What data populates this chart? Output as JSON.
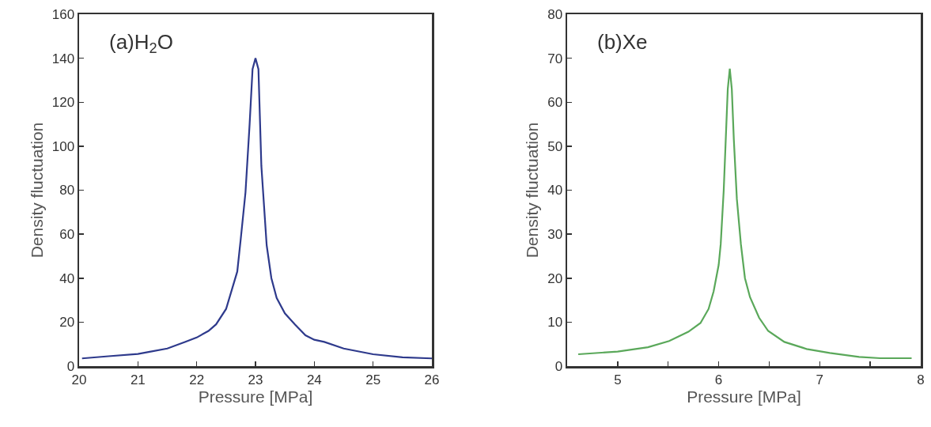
{
  "chart_data": [
    {
      "type": "line",
      "xlabel": "Pressure [MPa]",
      "ylabel": "Density fluctuation",
      "annotations": [
        "(a)H$_{2}$O"
      ],
      "xlim": [
        20,
        26
      ],
      "xticks": [
        20,
        21,
        22,
        23,
        24,
        25,
        26
      ],
      "ylim": [
        0,
        160
      ],
      "yticks": [
        0,
        20,
        40,
        60,
        80,
        100,
        120,
        140,
        160
      ],
      "grid": false,
      "marker": "none",
      "line_style": "solid",
      "series": [
        {
          "color": "#2e3a8c",
          "x": [
            20.05,
            20.5,
            21,
            21.2,
            21.5,
            21.8,
            22,
            22.2,
            22.33,
            22.5,
            22.69,
            22.75,
            22.83,
            22.9,
            22.95,
            23,
            23.05,
            23.1,
            23.19,
            23.27,
            23.36,
            23.5,
            23.67,
            23.85,
            24,
            24.17,
            24.5,
            25,
            25.5,
            26
          ],
          "values": [
            3.5,
            4.5,
            5.5,
            6.5,
            8,
            11,
            13,
            16,
            19,
            26,
            43,
            58,
            79,
            110,
            135,
            140,
            135,
            91,
            55,
            40,
            31,
            24,
            19,
            14,
            12,
            11,
            8,
            5.4,
            4,
            3.5
          ]
        }
      ]
    },
    {
      "type": "line",
      "xlabel": "Pressure [MPa]",
      "ylabel": "Density fluctuation",
      "annotations": [
        "(b)Xe"
      ],
      "xlim": [
        4.5,
        8
      ],
      "xticks": [
        5,
        {
          "value": 5.5,
          "label": null
        },
        6,
        {
          "value": 6.5,
          "label": null
        },
        7,
        {
          "value": 7.5,
          "label": null
        },
        8
      ],
      "ylim": [
        0,
        80
      ],
      "yticks": [
        0,
        10,
        20,
        30,
        40,
        50,
        60,
        70,
        80
      ],
      "grid": false,
      "marker": "none",
      "line_style": "solid",
      "series": [
        {
          "color": "#5aa85a",
          "x": [
            4.61,
            5,
            5.3,
            5.51,
            5.7,
            5.82,
            5.9,
            5.95,
            6,
            6.02,
            6.05,
            6.07,
            6.09,
            6.11,
            6.13,
            6.15,
            6.18,
            6.22,
            6.26,
            6.31,
            6.4,
            6.49,
            6.65,
            6.87,
            7.1,
            7.39,
            7.6,
            7.91
          ],
          "values": [
            2.7,
            3.3,
            4.3,
            5.7,
            7.8,
            9.8,
            13,
            17,
            23,
            27.7,
            40,
            51.5,
            63,
            67.6,
            63,
            51.5,
            38,
            27.7,
            20,
            15.7,
            11,
            8,
            5.5,
            3.9,
            3,
            2.1,
            1.8,
            1.8
          ]
        }
      ]
    }
  ]
}
